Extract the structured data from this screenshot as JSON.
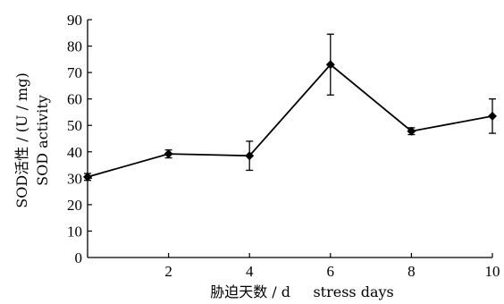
{
  "chart_data": {
    "type": "line",
    "title": "",
    "xlabel": "胁迫天数 / d     stress days",
    "ylabel_line1": "SOD活性 / (U / mg)",
    "ylabel_line2": "SOD activity",
    "xlim": [
      0,
      10
    ],
    "ylim": [
      0,
      90
    ],
    "x_ticks": [
      2,
      4,
      6,
      8,
      10
    ],
    "y_ticks": [
      0,
      10,
      20,
      30,
      40,
      50,
      60,
      70,
      80,
      90
    ],
    "origin_label": "0",
    "grid": false,
    "legend": "none",
    "series": [
      {
        "x": [
          0,
          2,
          4,
          6,
          8,
          10
        ],
        "values": [
          30.5,
          39.2,
          38.5,
          73.0,
          47.8,
          53.5
        ],
        "error": [
          1.3,
          1.5,
          5.5,
          11.5,
          1.3,
          6.5
        ],
        "color": "#000000",
        "marker": "diamond"
      }
    ]
  }
}
